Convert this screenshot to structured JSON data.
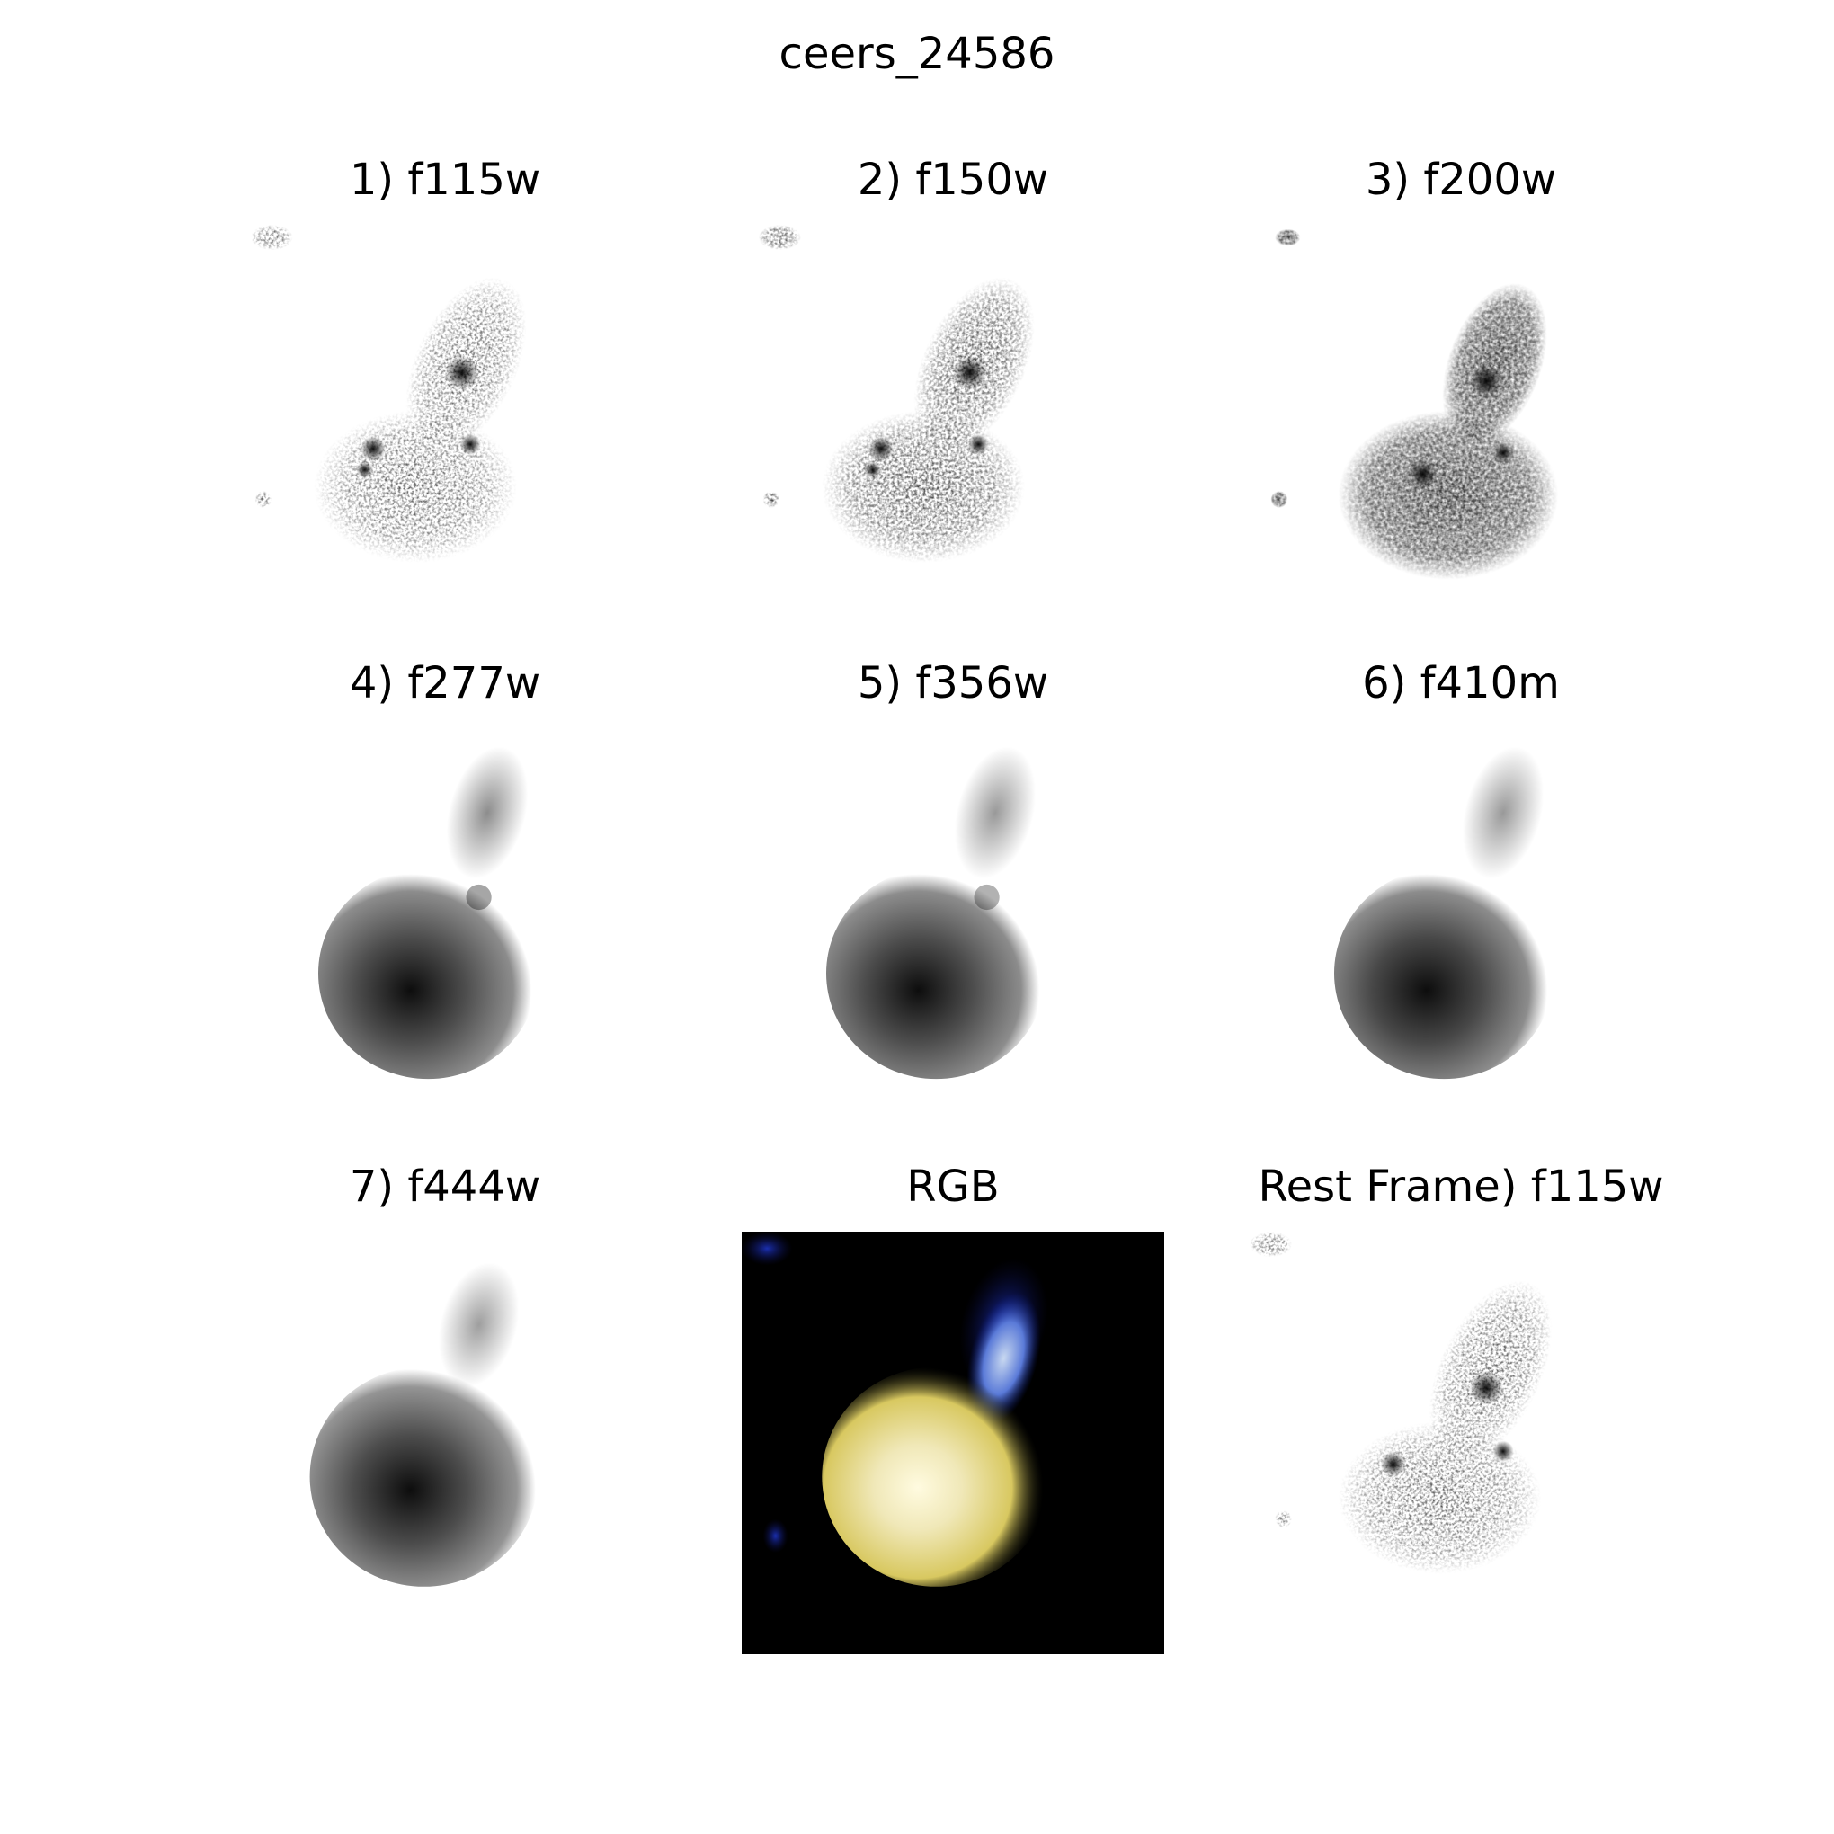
{
  "figure": {
    "title": "ceers_24586"
  },
  "panels": [
    {
      "title": "1) f115w",
      "image": "grayscale galaxy cutout (f115w)",
      "kind": "clumpy-short"
    },
    {
      "title": "2) f150w",
      "image": "grayscale galaxy cutout (f150w)",
      "kind": "clumpy-short"
    },
    {
      "title": "3) f200w",
      "image": "grayscale galaxy cutout (f200w)",
      "kind": "clumpy-mid"
    },
    {
      "title": "4) f277w",
      "image": "grayscale galaxy cutout (f277w)",
      "kind": "smooth"
    },
    {
      "title": "5) f356w",
      "image": "grayscale galaxy cutout (f356w)",
      "kind": "smooth"
    },
    {
      "title": "6) f410m",
      "image": "grayscale galaxy cutout (f410m)",
      "kind": "smooth"
    },
    {
      "title": "7) f444w",
      "image": "grayscale galaxy cutout (f444w)",
      "kind": "smooth-low"
    },
    {
      "title": "RGB",
      "image": "color composite cutout on black background",
      "kind": "rgb"
    },
    {
      "title": "Rest Frame) f115w",
      "image": "grayscale galaxy cutout (rest frame f115w)",
      "kind": "clumpy-rest"
    }
  ],
  "colors": {
    "background": "#ffffff",
    "text": "#000000",
    "rgb_background": "#000000",
    "rgb_core": "#f3efd0",
    "rgb_halo": "#d8c860",
    "rgb_tail": "#1a3fb8"
  }
}
